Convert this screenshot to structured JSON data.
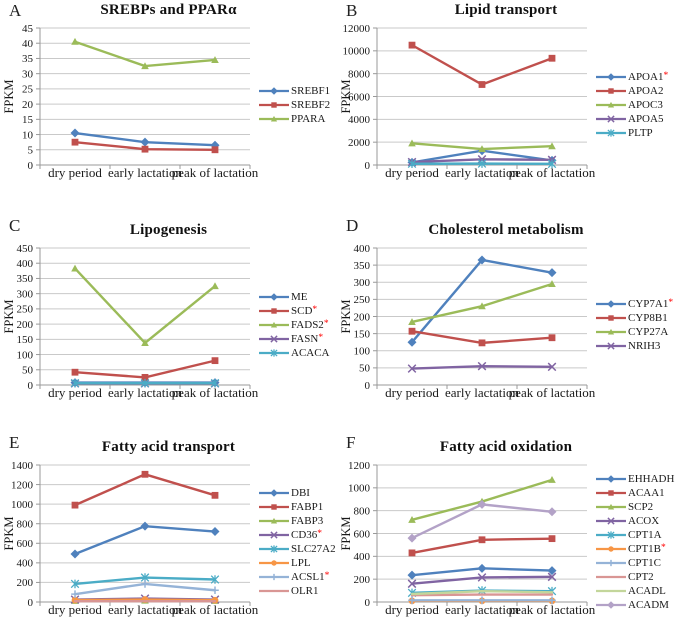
{
  "figure": {
    "background": "#FFFFFF",
    "y_axis_label": "FPKM",
    "x_categories": [
      "dry period",
      "early lactation",
      "peak of lactation"
    ],
    "sig_symbol": "*",
    "sig_color": "#FF0000",
    "gridline_color": "#C9C9C9",
    "axis_color": "#999999"
  },
  "chart_data": [
    {
      "type": "line",
      "panel_letter": "A",
      "title": "SREBPs and PPARα",
      "ylabel": "FPKM",
      "categories": [
        "dry period",
        "early lactation",
        "peak of lactation"
      ],
      "ylim": [
        0,
        45
      ],
      "ystep": 5,
      "grid": true,
      "legend_position": "right",
      "series": [
        {
          "name": "SREBF1",
          "significant": false,
          "color": "#4F81BD",
          "marker": "diamond",
          "values": [
            10.5,
            7.5,
            6.5
          ]
        },
        {
          "name": "SREBF2",
          "significant": false,
          "color": "#C0504D",
          "marker": "square",
          "values": [
            7.5,
            5.2,
            5.0
          ]
        },
        {
          "name": "PPARA",
          "significant": false,
          "color": "#9BBB59",
          "marker": "triangle",
          "values": [
            40.5,
            32.5,
            34.5
          ]
        }
      ]
    },
    {
      "type": "line",
      "panel_letter": "B",
      "title": "Lipid transport",
      "ylabel": "FPKM",
      "categories": [
        "dry period",
        "early lactation",
        "peak of lactation"
      ],
      "ylim": [
        0,
        12000
      ],
      "ystep": 2000,
      "grid": true,
      "legend_position": "right",
      "series": [
        {
          "name": "APOA1",
          "significant": true,
          "color": "#4F81BD",
          "marker": "diamond",
          "values": [
            230,
            1250,
            400
          ]
        },
        {
          "name": "APOA2",
          "significant": false,
          "color": "#C0504D",
          "marker": "square",
          "values": [
            10500,
            7050,
            9350
          ]
        },
        {
          "name": "APOC3",
          "significant": false,
          "color": "#9BBB59",
          "marker": "triangle",
          "values": [
            1900,
            1400,
            1650
          ]
        },
        {
          "name": "APOA5",
          "significant": false,
          "color": "#8064A2",
          "marker": "x",
          "values": [
            260,
            500,
            450
          ]
        },
        {
          "name": "PLTP",
          "significant": false,
          "color": "#4BACC6",
          "marker": "asterisk",
          "values": [
            110,
            120,
            100
          ]
        }
      ]
    },
    {
      "type": "line",
      "panel_letter": "C",
      "title": "Lipogenesis",
      "ylabel": "FPKM",
      "categories": [
        "dry period",
        "early lactation",
        "peak of lactation"
      ],
      "ylim": [
        0,
        450
      ],
      "ystep": 50,
      "grid": true,
      "legend_position": "right",
      "series": [
        {
          "name": "ME",
          "significant": false,
          "color": "#4F81BD",
          "marker": "diamond",
          "values": [
            8,
            8,
            8
          ]
        },
        {
          "name": "SCD",
          "significant": true,
          "color": "#C0504D",
          "marker": "square",
          "values": [
            42,
            25,
            80
          ]
        },
        {
          "name": "FADS2",
          "significant": true,
          "color": "#9BBB59",
          "marker": "triangle",
          "values": [
            383,
            138,
            325
          ]
        },
        {
          "name": "FASN",
          "significant": true,
          "color": "#8064A2",
          "marker": "x",
          "values": [
            5,
            5,
            5
          ]
        },
        {
          "name": "ACACA",
          "significant": false,
          "color": "#4BACC6",
          "marker": "asterisk",
          "values": [
            6,
            6,
            6
          ]
        }
      ]
    },
    {
      "type": "line",
      "panel_letter": "D",
      "title": "Cholesterol metabolism",
      "ylabel": "FPKM",
      "categories": [
        "dry period",
        "early lactation",
        "peak of lactation"
      ],
      "ylim": [
        0,
        400
      ],
      "ystep": 50,
      "grid": true,
      "legend_position": "right",
      "series": [
        {
          "name": "CYP7A1",
          "significant": true,
          "color": "#4F81BD",
          "marker": "diamond",
          "values": [
            125,
            365,
            328
          ]
        },
        {
          "name": "CYP8B1",
          "significant": false,
          "color": "#C0504D",
          "marker": "square",
          "values": [
            157,
            123,
            138
          ]
        },
        {
          "name": "CYP27A",
          "significant": false,
          "color": "#9BBB59",
          "marker": "triangle",
          "values": [
            184,
            230,
            295
          ]
        },
        {
          "name": "NRIH3",
          "significant": false,
          "color": "#8064A2",
          "marker": "x",
          "values": [
            48,
            55,
            53
          ]
        }
      ]
    },
    {
      "type": "line",
      "panel_letter": "E",
      "title": "Fatty acid transport",
      "ylabel": "FPKM",
      "categories": [
        "dry period",
        "early lactation",
        "peak of lactation"
      ],
      "ylim": [
        0,
        1400
      ],
      "ystep": 200,
      "grid": true,
      "legend_position": "right",
      "series": [
        {
          "name": "DBI",
          "significant": false,
          "color": "#4F81BD",
          "marker": "diamond",
          "values": [
            490,
            775,
            720
          ]
        },
        {
          "name": "FABP1",
          "significant": false,
          "color": "#C0504D",
          "marker": "square",
          "values": [
            990,
            1305,
            1090
          ]
        },
        {
          "name": "FABP3",
          "significant": false,
          "color": "#9BBB59",
          "marker": "triangle",
          "values": [
            12,
            15,
            12
          ]
        },
        {
          "name": "CD36",
          "significant": true,
          "color": "#8064A2",
          "marker": "x",
          "values": [
            25,
            35,
            25
          ]
        },
        {
          "name": "SLC27A2",
          "significant": false,
          "color": "#4BACC6",
          "marker": "asterisk",
          "values": [
            185,
            250,
            230
          ]
        },
        {
          "name": "LPL",
          "significant": false,
          "color": "#F79646",
          "marker": "circle",
          "values": [
            20,
            25,
            18
          ]
        },
        {
          "name": "ACSL1",
          "significant": true,
          "color": "#95B3D7",
          "marker": "plus",
          "values": [
            80,
            185,
            120
          ]
        },
        {
          "name": "OLR1",
          "significant": false,
          "color": "#D99694",
          "marker": "dash",
          "values": [
            8,
            8,
            8
          ]
        }
      ]
    },
    {
      "type": "line",
      "panel_letter": "F",
      "title": "Fatty acid oxidation",
      "ylabel": "FPKM",
      "categories": [
        "dry period",
        "early lactation",
        "peak of lactation"
      ],
      "ylim": [
        0,
        1200
      ],
      "ystep": 200,
      "grid": true,
      "legend_position": "right",
      "series": [
        {
          "name": "EHHADH",
          "significant": false,
          "color": "#4F81BD",
          "marker": "diamond",
          "values": [
            235,
            295,
            275
          ]
        },
        {
          "name": "ACAA1",
          "significant": false,
          "color": "#C0504D",
          "marker": "square",
          "values": [
            430,
            545,
            555
          ]
        },
        {
          "name": "SCP2",
          "significant": false,
          "color": "#9BBB59",
          "marker": "triangle",
          "values": [
            720,
            880,
            1070
          ]
        },
        {
          "name": "ACOX",
          "significant": false,
          "color": "#8064A2",
          "marker": "x",
          "values": [
            160,
            215,
            220
          ]
        },
        {
          "name": "CPT1A",
          "significant": false,
          "color": "#4BACC6",
          "marker": "asterisk",
          "values": [
            80,
            100,
            95
          ]
        },
        {
          "name": "CPT1B",
          "significant": true,
          "color": "#F79646",
          "marker": "circle",
          "values": [
            10,
            10,
            10
          ]
        },
        {
          "name": "CPT1C",
          "significant": false,
          "color": "#95B3D7",
          "marker": "plus",
          "values": [
            15,
            15,
            15
          ]
        },
        {
          "name": "CPT2",
          "significant": false,
          "color": "#D99694",
          "marker": "dash",
          "values": [
            60,
            65,
            65
          ]
        },
        {
          "name": "ACADL",
          "significant": false,
          "color": "#C3D69B",
          "marker": "dash",
          "values": [
            70,
            95,
            85
          ]
        },
        {
          "name": "ACADM",
          "significant": false,
          "color": "#B3A2C7",
          "marker": "diamond",
          "values": [
            560,
            855,
            790
          ]
        }
      ]
    }
  ]
}
